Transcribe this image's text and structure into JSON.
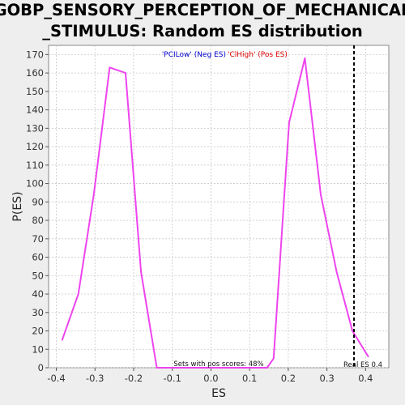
{
  "chart_data": {
    "type": "line",
    "title_line1": "GOBP_SENSORY_PERCEPTION_OF_MECHANICAL",
    "title_line2": "_STIMULUS: Random ES distribution",
    "xlabel": "ES",
    "ylabel": "P(ES)",
    "xlim": [
      -0.42,
      0.46
    ],
    "ylim": [
      0,
      175
    ],
    "xticks": [
      -0.4,
      -0.3,
      -0.2,
      -0.1,
      0.0,
      0.1,
      0.2,
      0.3,
      0.4
    ],
    "xtick_labels": [
      "-0.4",
      "-0.3",
      "-0.2",
      "-0.1",
      "0.0",
      "0.1",
      "0.2",
      "0.3",
      "0.4"
    ],
    "yticks": [
      0,
      10,
      20,
      30,
      40,
      50,
      60,
      70,
      80,
      90,
      100,
      110,
      120,
      130,
      140,
      150,
      160,
      170
    ],
    "ytick_labels": [
      "0",
      "10",
      "20",
      "30",
      "40",
      "50",
      "60",
      "70",
      "80",
      "90",
      "100",
      "110",
      "120",
      "130",
      "140",
      "150",
      "160",
      "170"
    ],
    "legend": {
      "neg_label": "'PCILow' (Neg ES)",
      "pos_label": "'ClHigh' (Pos ES)",
      "neg_color": "#0000cc",
      "pos_color": "#dd0000"
    },
    "series": [
      {
        "color": "#ee44ee",
        "x": [
          -0.385,
          -0.343,
          -0.303,
          -0.262,
          -0.221,
          -0.181,
          -0.14,
          -0.099,
          -0.058,
          -0.018,
          0.023,
          0.064,
          0.104,
          0.145,
          0.162,
          0.202,
          0.243,
          0.284,
          0.325,
          0.366,
          0.407
        ],
        "y": [
          15,
          40,
          94,
          163,
          160,
          52,
          0,
          0,
          0,
          0,
          0,
          0,
          0,
          0,
          5,
          133,
          168,
          94,
          52,
          20,
          6
        ]
      }
    ],
    "real_es": 0.37,
    "real_es_label": "Real ES 0.4",
    "annotation": "Sets with pos scores: 48%",
    "grid": true,
    "line_color": "#ee44ee",
    "real_es_color": "#000000",
    "grid_color": "#c8c8c8",
    "plot_bg": "#ffffff"
  }
}
